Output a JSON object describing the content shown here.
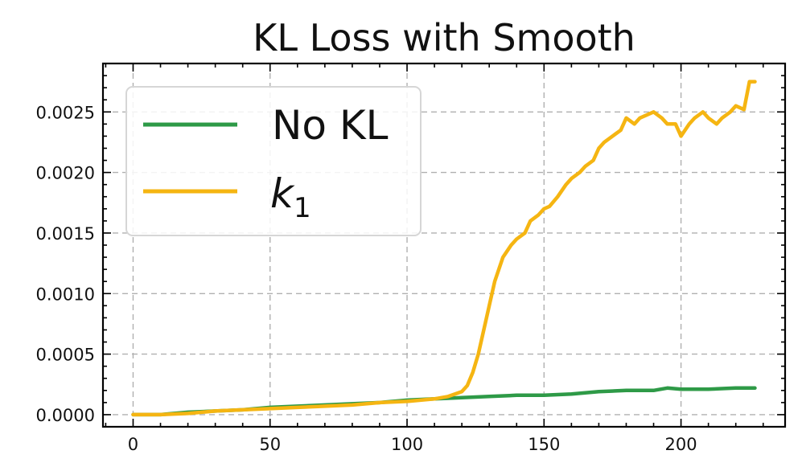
{
  "chart_data": {
    "type": "line",
    "title": "KL Loss with Smooth",
    "xlabel": "",
    "ylabel": "",
    "xlim": [
      -11,
      238
    ],
    "ylim": [
      -0.0001,
      0.0029
    ],
    "xticks": [
      0,
      50,
      100,
      150,
      200
    ],
    "xtick_labels": [
      "0",
      "50",
      "100",
      "150",
      "200"
    ],
    "yticks": [
      0.0,
      0.0005,
      0.001,
      0.0015,
      0.002,
      0.0025
    ],
    "ytick_labels": [
      "0.0000",
      "0.0005",
      "0.0010",
      "0.0015",
      "0.0020",
      "0.0025"
    ],
    "grid": true,
    "legend_position": "upper-left",
    "series": [
      {
        "name": "No KL",
        "legend_label": "No KL",
        "color": "#2e9a47",
        "x": [
          0,
          10,
          20,
          30,
          40,
          50,
          60,
          70,
          80,
          90,
          100,
          110,
          120,
          130,
          140,
          150,
          160,
          170,
          180,
          190,
          195,
          200,
          210,
          220,
          227
        ],
        "y": [
          0.0,
          0.0,
          2e-05,
          3e-05,
          4e-05,
          6e-05,
          7e-05,
          8e-05,
          9e-05,
          0.0001,
          0.00012,
          0.00013,
          0.00014,
          0.00015,
          0.00016,
          0.00016,
          0.00017,
          0.00019,
          0.0002,
          0.0002,
          0.00022,
          0.00021,
          0.00021,
          0.00022,
          0.00022
        ]
      },
      {
        "name": "k1",
        "legend_label": "k",
        "legend_subscript": "1",
        "color": "#f5b512",
        "x": [
          0,
          10,
          20,
          30,
          40,
          50,
          60,
          70,
          80,
          90,
          100,
          110,
          115,
          120,
          122,
          124,
          126,
          128,
          130,
          132,
          135,
          138,
          140,
          143,
          145,
          148,
          150,
          152,
          155,
          158,
          160,
          163,
          165,
          168,
          170,
          172,
          175,
          178,
          180,
          183,
          185,
          188,
          190,
          193,
          195,
          198,
          200,
          203,
          205,
          208,
          210,
          213,
          215,
          218,
          220,
          223,
          225,
          227
        ],
        "y": [
          0.0,
          0.0,
          1e-05,
          3e-05,
          4e-05,
          5e-05,
          6e-05,
          7e-05,
          8e-05,
          0.0001,
          0.00011,
          0.00013,
          0.00015,
          0.00019,
          0.00024,
          0.00035,
          0.0005,
          0.0007,
          0.0009,
          0.0011,
          0.0013,
          0.0014,
          0.00145,
          0.0015,
          0.0016,
          0.00165,
          0.0017,
          0.00172,
          0.0018,
          0.0019,
          0.00195,
          0.002,
          0.00205,
          0.0021,
          0.0022,
          0.00225,
          0.0023,
          0.00235,
          0.00245,
          0.0024,
          0.00245,
          0.00248,
          0.0025,
          0.00245,
          0.0024,
          0.0024,
          0.0023,
          0.0024,
          0.00245,
          0.0025,
          0.00245,
          0.0024,
          0.00245,
          0.0025,
          0.00255,
          0.00252,
          0.00275,
          0.00275
        ]
      }
    ]
  }
}
